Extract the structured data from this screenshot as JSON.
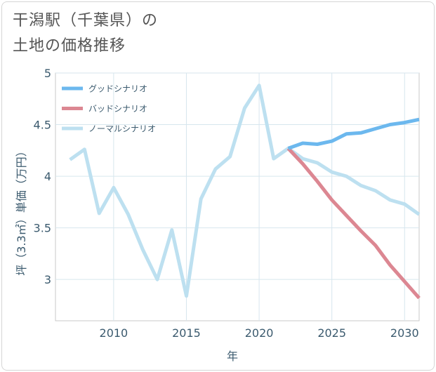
{
  "chart_data": {
    "type": "line",
    "title": [
      "干潟駅（千葉県）の",
      "土地の価格推移"
    ],
    "xlabel": "年",
    "ylabel": "坪（3.3㎡）単価（万円）",
    "xlim": [
      2006,
      2031
    ],
    "ylim": [
      2.6,
      5
    ],
    "xticks": [
      2010,
      2015,
      2020,
      2025,
      2030
    ],
    "yticks": [
      3,
      3.5,
      4,
      4.5,
      5
    ],
    "grid": true,
    "legend_position": "top-left",
    "series": [
      {
        "name": "グッドシナリオ",
        "color": "#6cb8ee",
        "x": [
          2022,
          2023,
          2024,
          2025,
          2026,
          2027,
          2028,
          2029,
          2030,
          2031
        ],
        "y": [
          4.27,
          4.32,
          4.31,
          4.34,
          4.41,
          4.42,
          4.46,
          4.5,
          4.52,
          4.55
        ]
      },
      {
        "name": "バッドシナリオ",
        "color": "#dc8792",
        "x": [
          2022,
          2023,
          2024,
          2025,
          2026,
          2027,
          2028,
          2029,
          2030,
          2031
        ],
        "y": [
          4.27,
          4.12,
          3.95,
          3.77,
          3.62,
          3.47,
          3.33,
          3.14,
          2.98,
          2.82
        ]
      },
      {
        "name": "ノーマルシナリオ",
        "color": "#bde0f0",
        "x": [
          2007,
          2008,
          2009,
          2010,
          2011,
          2012,
          2013,
          2014,
          2015,
          2016,
          2017,
          2018,
          2019,
          2020,
          2021,
          2022,
          2023,
          2024,
          2025,
          2026,
          2027,
          2028,
          2029,
          2030,
          2031
        ],
        "y": [
          4.16,
          4.26,
          3.64,
          3.89,
          3.63,
          3.29,
          3.0,
          3.48,
          2.84,
          3.78,
          4.07,
          4.19,
          4.66,
          4.88,
          4.17,
          4.27,
          4.17,
          4.13,
          4.04,
          4.0,
          3.91,
          3.86,
          3.77,
          3.73,
          3.63
        ]
      }
    ]
  }
}
